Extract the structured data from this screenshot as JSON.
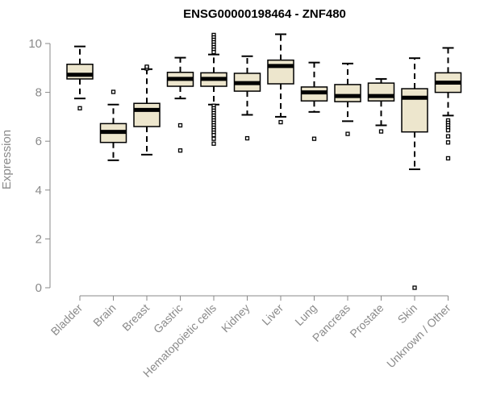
{
  "chart_data": {
    "type": "boxplot",
    "title": "ENSG00000198464 - ZNF480",
    "xlabel": "",
    "ylabel": "Expression",
    "ylim": [
      0,
      10
    ],
    "yticks": [
      0,
      2,
      4,
      6,
      8,
      10
    ],
    "grid": false,
    "colors": {
      "box_fill": "#ede6cd",
      "stroke": "#000000",
      "axis": "#888888"
    },
    "categories": [
      "Bladder",
      "Brain",
      "Breast",
      "Gastric",
      "Hematopoietic cells",
      "Kidney",
      "Liver",
      "Lung",
      "Pancreas",
      "Prostate",
      "Skin",
      "Unknown / Other"
    ],
    "boxes": [
      {
        "category": "Bladder",
        "whisker_low": 7.75,
        "q1": 8.55,
        "median": 8.72,
        "q3": 9.15,
        "whisker_high": 9.88,
        "outliers": [
          7.35
        ]
      },
      {
        "category": "Brain",
        "whisker_low": 5.22,
        "q1": 5.95,
        "median": 6.38,
        "q3": 6.72,
        "whisker_high": 7.5,
        "outliers": [
          8.02
        ]
      },
      {
        "category": "Breast",
        "whisker_low": 5.45,
        "q1": 6.6,
        "median": 7.28,
        "q3": 7.55,
        "whisker_high": 8.95,
        "outliers": [
          9.02,
          8.98,
          9.05
        ]
      },
      {
        "category": "Gastric",
        "whisker_low": 7.75,
        "q1": 8.25,
        "median": 8.55,
        "q3": 8.82,
        "whisker_high": 9.42,
        "outliers": [
          6.65,
          5.62
        ]
      },
      {
        "category": "Hematopoietic cells",
        "whisker_low": 7.5,
        "q1": 8.25,
        "median": 8.55,
        "q3": 8.8,
        "whisker_high": 9.55,
        "outliers": [
          10.35,
          10.25,
          10.15,
          10.05,
          9.95,
          9.85,
          9.75,
          9.65,
          7.45,
          7.35,
          7.25,
          7.15,
          7.05,
          6.95,
          6.85,
          6.75,
          6.65,
          6.55,
          6.45,
          6.35,
          6.25,
          6.1,
          5.9
        ]
      },
      {
        "category": "Kidney",
        "whisker_low": 7.08,
        "q1": 8.05,
        "median": 8.38,
        "q3": 8.78,
        "whisker_high": 9.48,
        "outliers": [
          6.12
        ]
      },
      {
        "category": "Liver",
        "whisker_low": 7.0,
        "q1": 8.35,
        "median": 9.08,
        "q3": 9.32,
        "whisker_high": 10.38,
        "outliers": [
          6.78
        ]
      },
      {
        "category": "Lung",
        "whisker_low": 7.2,
        "q1": 7.65,
        "median": 8.0,
        "q3": 8.22,
        "whisker_high": 9.22,
        "outliers": [
          6.1
        ]
      },
      {
        "category": "Pancreas",
        "whisker_low": 6.82,
        "q1": 7.62,
        "median": 7.85,
        "q3": 8.32,
        "whisker_high": 9.18,
        "outliers": [
          6.3
        ]
      },
      {
        "category": "Prostate",
        "whisker_low": 6.65,
        "q1": 7.65,
        "median": 7.85,
        "q3": 8.38,
        "whisker_high": 8.55,
        "outliers": [
          6.4
        ]
      },
      {
        "category": "Skin",
        "whisker_low": 4.85,
        "q1": 6.38,
        "median": 7.78,
        "q3": 8.15,
        "whisker_high": 9.4,
        "outliers": [
          0.0
        ]
      },
      {
        "category": "Unknown / Other",
        "whisker_low": 7.05,
        "q1": 8.0,
        "median": 8.4,
        "q3": 8.8,
        "whisker_high": 9.82,
        "outliers": [
          6.85,
          6.75,
          6.65,
          6.55,
          6.45,
          6.2,
          5.95,
          5.3
        ]
      }
    ]
  }
}
